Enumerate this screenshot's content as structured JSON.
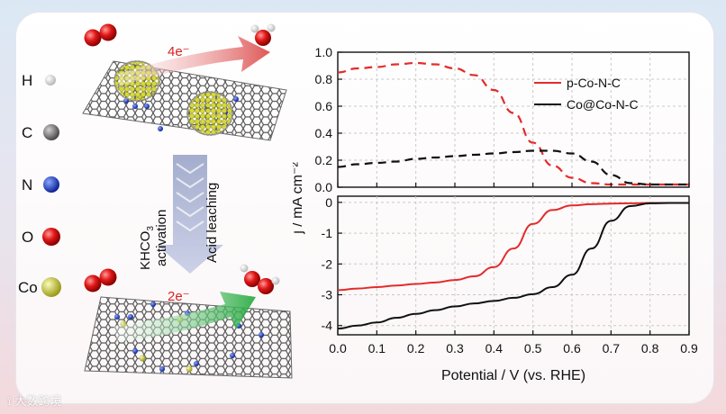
{
  "legend": {
    "atoms": [
      {
        "symbol": "H",
        "color": "#ffffff"
      },
      {
        "symbol": "C",
        "color": "#707070"
      },
      {
        "symbol": "N",
        "color": "#1d3fcf"
      },
      {
        "symbol": "O",
        "color": "#e01818"
      },
      {
        "symbol": "Co",
        "color": "#d7d94a"
      }
    ]
  },
  "scheme": {
    "top_label": "4e⁻",
    "bottom_label": "2e⁻",
    "step1_line1": "KHCO",
    "step1_sub": "3",
    "step1_line2": "activation",
    "step2": "Acid leaching"
  },
  "chart_data": {
    "type": "line",
    "xlabel": "Potential / V (vs. RHE)",
    "ylabel": "j / mA cm⁻²",
    "x_ticks": [
      "0.0",
      "0.1",
      "0.2",
      "0.3",
      "0.4",
      "0.5",
      "0.6",
      "0.7",
      "0.8",
      "0.9"
    ],
    "xlim": [
      0,
      0.9
    ],
    "top_panel": {
      "ylim": [
        0,
        1.0
      ],
      "y_ticks": [
        "0.0",
        "0.2",
        "0.4",
        "0.6",
        "0.8",
        "1.0"
      ],
      "series": [
        {
          "name": "p-Co-N-C",
          "color": "#e32b2b",
          "dash": true,
          "x": [
            0,
            0.05,
            0.1,
            0.15,
            0.2,
            0.25,
            0.3,
            0.35,
            0.4,
            0.45,
            0.5,
            0.55,
            0.6,
            0.65,
            0.7,
            0.75,
            0.8,
            0.85,
            0.9
          ],
          "y": [
            0.85,
            0.88,
            0.89,
            0.91,
            0.92,
            0.91,
            0.88,
            0.83,
            0.72,
            0.55,
            0.33,
            0.16,
            0.07,
            0.03,
            0.02,
            0.02,
            0.02,
            0.02,
            0.02
          ]
        },
        {
          "name": "Co@Co-N-C",
          "color": "#111111",
          "dash": true,
          "x": [
            0,
            0.05,
            0.1,
            0.15,
            0.2,
            0.25,
            0.3,
            0.35,
            0.4,
            0.45,
            0.5,
            0.55,
            0.6,
            0.65,
            0.7,
            0.75,
            0.8,
            0.85,
            0.9
          ],
          "y": [
            0.15,
            0.17,
            0.18,
            0.19,
            0.21,
            0.22,
            0.23,
            0.24,
            0.25,
            0.26,
            0.27,
            0.27,
            0.25,
            0.19,
            0.09,
            0.03,
            0.02,
            0.02,
            0.02
          ]
        }
      ]
    },
    "bottom_panel": {
      "ylim": [
        -4.3,
        0.2
      ],
      "y_ticks": [
        "-4",
        "-3",
        "-2",
        "-1",
        "0"
      ],
      "series": [
        {
          "name": "p-Co-N-C",
          "color": "#e32b2b",
          "dash": false,
          "x": [
            0,
            0.05,
            0.1,
            0.15,
            0.2,
            0.25,
            0.3,
            0.35,
            0.4,
            0.45,
            0.5,
            0.55,
            0.6,
            0.65,
            0.7,
            0.75,
            0.8,
            0.85,
            0.9
          ],
          "y": [
            -2.85,
            -2.8,
            -2.75,
            -2.7,
            -2.65,
            -2.6,
            -2.52,
            -2.4,
            -2.1,
            -1.5,
            -0.7,
            -0.25,
            -0.1,
            -0.06,
            -0.04,
            -0.03,
            -0.02,
            -0.02,
            -0.02
          ]
        },
        {
          "name": "Co@Co-N-C",
          "color": "#111111",
          "dash": false,
          "x": [
            0,
            0.05,
            0.1,
            0.15,
            0.2,
            0.25,
            0.3,
            0.35,
            0.4,
            0.45,
            0.5,
            0.55,
            0.6,
            0.65,
            0.7,
            0.75,
            0.8,
            0.85,
            0.9
          ],
          "y": [
            -4.1,
            -4.0,
            -3.9,
            -3.75,
            -3.62,
            -3.5,
            -3.38,
            -3.28,
            -3.2,
            -3.1,
            -2.98,
            -2.75,
            -2.35,
            -1.5,
            -0.6,
            -0.12,
            -0.03,
            -0.02,
            -0.02
          ]
        }
      ]
    },
    "legend_entries": [
      {
        "name": "p-Co-N-C",
        "color": "#e32b2b"
      },
      {
        "name": "Co@Co-N-C",
        "color": "#111111"
      }
    ],
    "legend_position": "top-right"
  }
}
